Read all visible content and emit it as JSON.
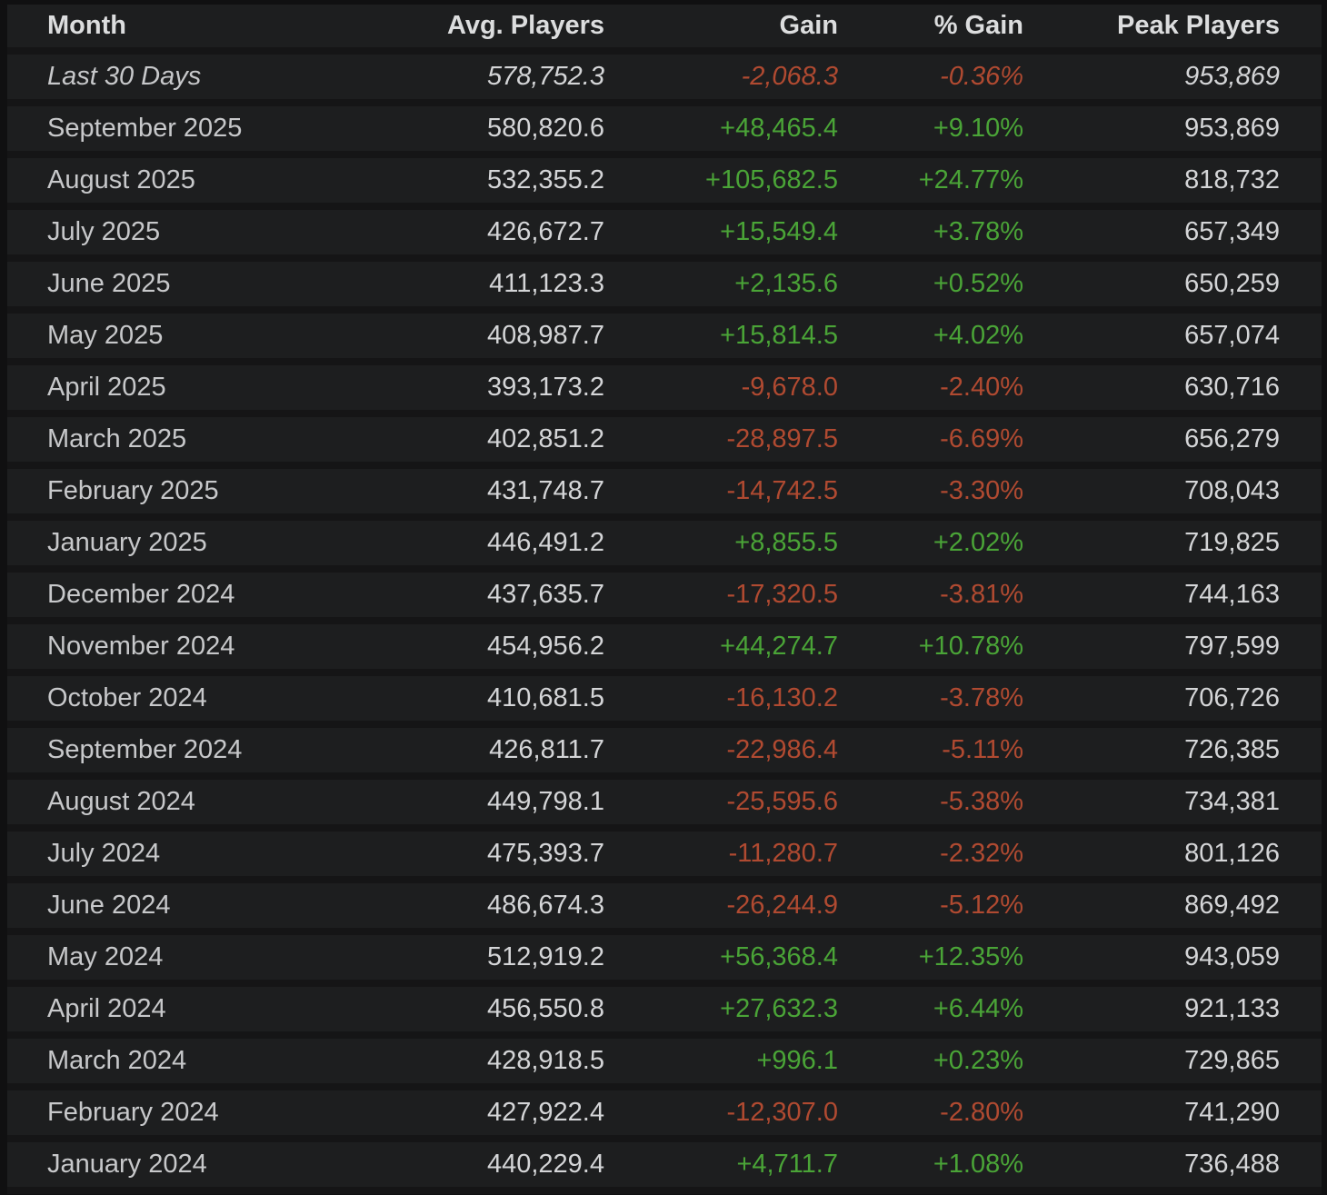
{
  "colors": {
    "gain_positive": "#4aa437",
    "gain_negative": "#b04a31",
    "row_background": "#1d1e1f",
    "row_separator": "#151516",
    "text_primary": "#d4d5d7",
    "text_month": "#c7c8ca",
    "text_header": "#dcddde"
  },
  "chart_data": {
    "type": "table",
    "columns": [
      "Month",
      "Avg. Players",
      "Gain",
      "% Gain",
      "Peak Players"
    ],
    "rows": [
      {
        "month": "Last 30 Days",
        "avg": "578,752.3",
        "gain": "-2,068.3",
        "pct_gain": "-0.36%",
        "peak": "953,869",
        "direction": "negative",
        "emphasis": "italic"
      },
      {
        "month": "September 2025",
        "avg": "580,820.6",
        "gain": "+48,465.4",
        "pct_gain": "+9.10%",
        "peak": "953,869",
        "direction": "positive",
        "emphasis": "none"
      },
      {
        "month": "August 2025",
        "avg": "532,355.2",
        "gain": "+105,682.5",
        "pct_gain": "+24.77%",
        "peak": "818,732",
        "direction": "positive",
        "emphasis": "none"
      },
      {
        "month": "July 2025",
        "avg": "426,672.7",
        "gain": "+15,549.4",
        "pct_gain": "+3.78%",
        "peak": "657,349",
        "direction": "positive",
        "emphasis": "none"
      },
      {
        "month": "June 2025",
        "avg": "411,123.3",
        "gain": "+2,135.6",
        "pct_gain": "+0.52%",
        "peak": "650,259",
        "direction": "positive",
        "emphasis": "none"
      },
      {
        "month": "May 2025",
        "avg": "408,987.7",
        "gain": "+15,814.5",
        "pct_gain": "+4.02%",
        "peak": "657,074",
        "direction": "positive",
        "emphasis": "none"
      },
      {
        "month": "April 2025",
        "avg": "393,173.2",
        "gain": "-9,678.0",
        "pct_gain": "-2.40%",
        "peak": "630,716",
        "direction": "negative",
        "emphasis": "none"
      },
      {
        "month": "March 2025",
        "avg": "402,851.2",
        "gain": "-28,897.5",
        "pct_gain": "-6.69%",
        "peak": "656,279",
        "direction": "negative",
        "emphasis": "none"
      },
      {
        "month": "February 2025",
        "avg": "431,748.7",
        "gain": "-14,742.5",
        "pct_gain": "-3.30%",
        "peak": "708,043",
        "direction": "negative",
        "emphasis": "none"
      },
      {
        "month": "January 2025",
        "avg": "446,491.2",
        "gain": "+8,855.5",
        "pct_gain": "+2.02%",
        "peak": "719,825",
        "direction": "positive",
        "emphasis": "none"
      },
      {
        "month": "December 2024",
        "avg": "437,635.7",
        "gain": "-17,320.5",
        "pct_gain": "-3.81%",
        "peak": "744,163",
        "direction": "negative",
        "emphasis": "none"
      },
      {
        "month": "November 2024",
        "avg": "454,956.2",
        "gain": "+44,274.7",
        "pct_gain": "+10.78%",
        "peak": "797,599",
        "direction": "positive",
        "emphasis": "none"
      },
      {
        "month": "October 2024",
        "avg": "410,681.5",
        "gain": "-16,130.2",
        "pct_gain": "-3.78%",
        "peak": "706,726",
        "direction": "negative",
        "emphasis": "none"
      },
      {
        "month": "September 2024",
        "avg": "426,811.7",
        "gain": "-22,986.4",
        "pct_gain": "-5.11%",
        "peak": "726,385",
        "direction": "negative",
        "emphasis": "none"
      },
      {
        "month": "August 2024",
        "avg": "449,798.1",
        "gain": "-25,595.6",
        "pct_gain": "-5.38%",
        "peak": "734,381",
        "direction": "negative",
        "emphasis": "none"
      },
      {
        "month": "July 2024",
        "avg": "475,393.7",
        "gain": "-11,280.7",
        "pct_gain": "-2.32%",
        "peak": "801,126",
        "direction": "negative",
        "emphasis": "none"
      },
      {
        "month": "June 2024",
        "avg": "486,674.3",
        "gain": "-26,244.9",
        "pct_gain": "-5.12%",
        "peak": "869,492",
        "direction": "negative",
        "emphasis": "none"
      },
      {
        "month": "May 2024",
        "avg": "512,919.2",
        "gain": "+56,368.4",
        "pct_gain": "+12.35%",
        "peak": "943,059",
        "direction": "positive",
        "emphasis": "none"
      },
      {
        "month": "April 2024",
        "avg": "456,550.8",
        "gain": "+27,632.3",
        "pct_gain": "+6.44%",
        "peak": "921,133",
        "direction": "positive",
        "emphasis": "none"
      },
      {
        "month": "March 2024",
        "avg": "428,918.5",
        "gain": "+996.1",
        "pct_gain": "+0.23%",
        "peak": "729,865",
        "direction": "positive",
        "emphasis": "none"
      },
      {
        "month": "February 2024",
        "avg": "427,922.4",
        "gain": "-12,307.0",
        "pct_gain": "-2.80%",
        "peak": "741,290",
        "direction": "negative",
        "emphasis": "none"
      },
      {
        "month": "January 2024",
        "avg": "440,229.4",
        "gain": "+4,711.7",
        "pct_gain": "+1.08%",
        "peak": "736,488",
        "direction": "positive",
        "emphasis": "none"
      }
    ]
  }
}
